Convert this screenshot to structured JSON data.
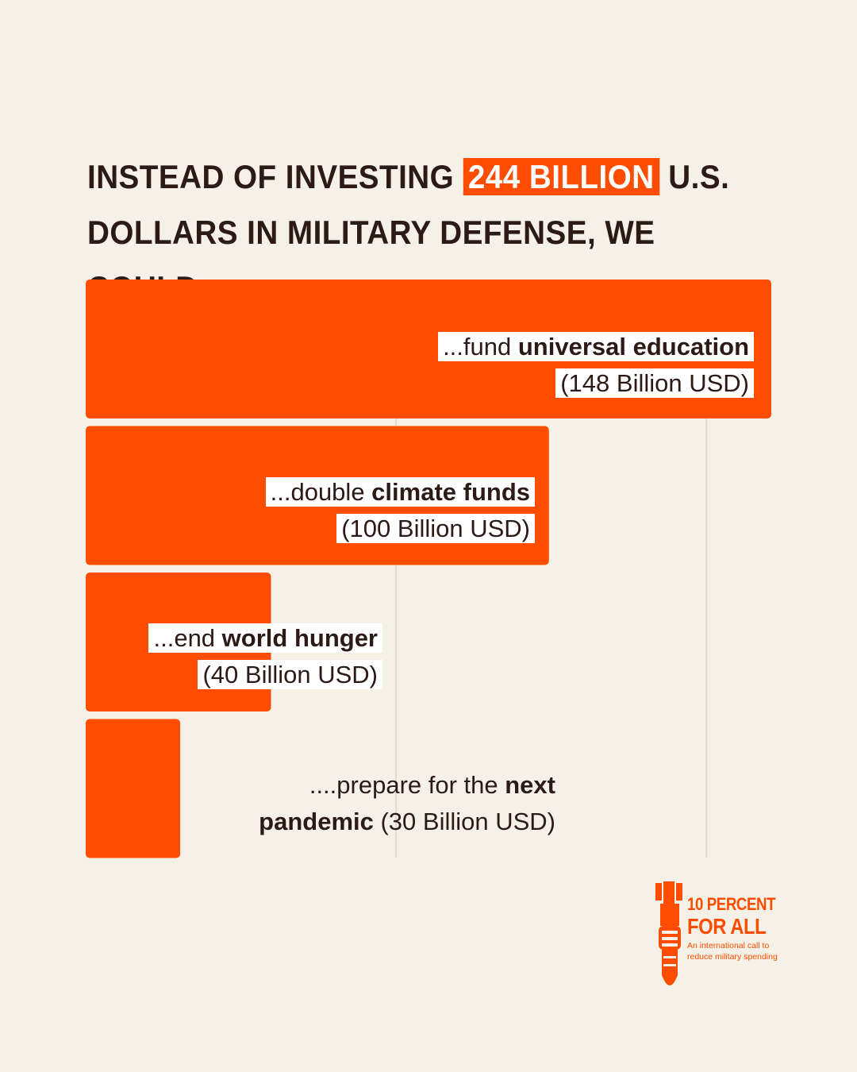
{
  "headline": {
    "before": "INSTEAD OF INVESTING ",
    "highlight": "244 BILLION",
    "after": " U.S. DOLLARS IN MILITARY DEFENSE, WE COULD...."
  },
  "chart_data": {
    "type": "bar",
    "orientation": "horizontal",
    "unit": "Billion USD",
    "bar_color": "#ff4d00",
    "grid": true,
    "categories": [
      "universal education",
      "climate funds",
      "world hunger",
      "next pandemic"
    ],
    "values": [
      148,
      100,
      40,
      30
    ],
    "labels": [
      {
        "prefix": "...fund ",
        "bold": "universal education",
        "amount": "(148 Billion USD)"
      },
      {
        "prefix": "...double ",
        "bold": "climate funds",
        "amount": "(100 Billion USD)"
      },
      {
        "prefix": "...end ",
        "bold": "world hunger",
        "amount": "(40 Billion USD)"
      },
      {
        "prefix": "....prepare for the ",
        "bold": "next",
        "line2_bold": "pandemic",
        "amount": " (30 Billion USD)"
      }
    ]
  },
  "logo": {
    "line1": "10 PERCENT",
    "line2": "FOR ALL",
    "tagline": "An international call to reduce military spending",
    "color": "#ff4d00"
  }
}
